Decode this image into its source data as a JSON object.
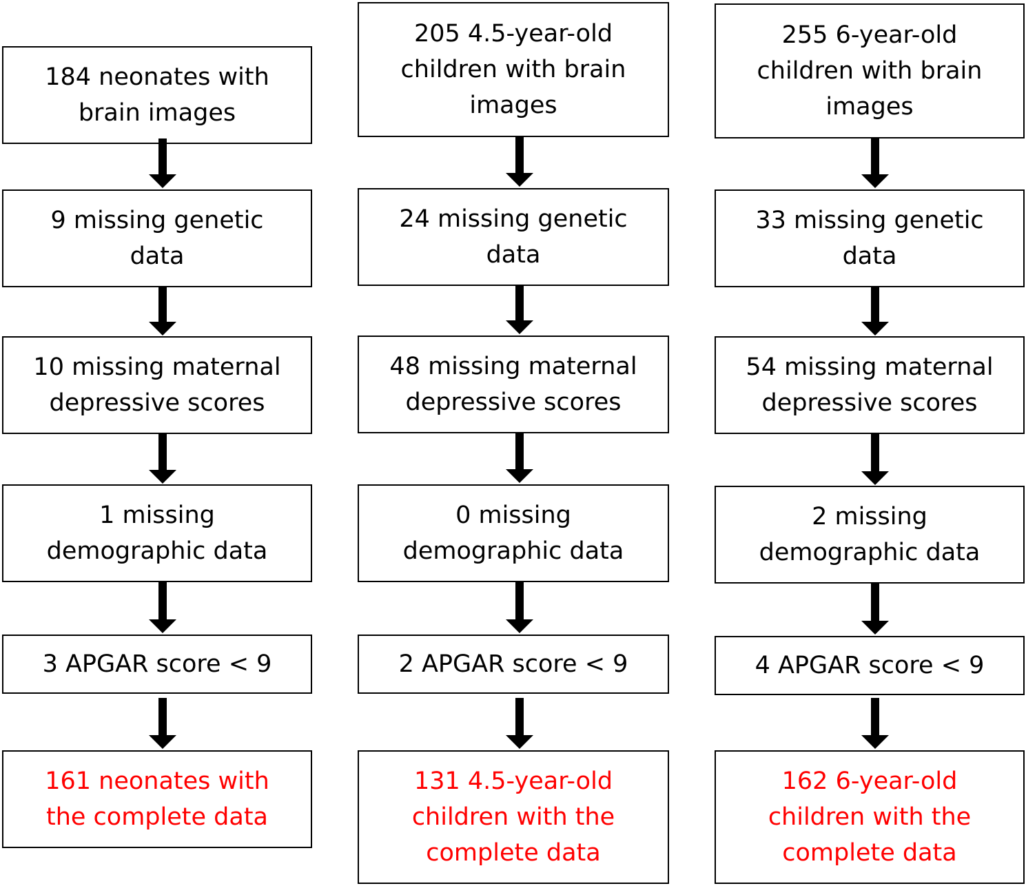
{
  "columns": [
    {
      "steps": [
        "184 neonates with\nbrain images",
        "9 missing genetic\ndata",
        "10 missing maternal\ndepressive scores",
        "1 missing\ndemographic data",
        "3 APGAR score < 9",
        "161 neonates with\nthe complete data"
      ]
    },
    {
      "steps": [
        "205  4.5-year-old\nchildren with brain\nimages",
        "24 missing genetic\ndata",
        "48 missing maternal\ndepressive scores",
        "0 missing\ndemographic data",
        "2 APGAR score < 9",
        "131 4.5-year-old\nchildren with the\ncomplete data"
      ]
    },
    {
      "steps": [
        "255 6-year-old\nchildren with brain\nimages",
        "33 missing genetic\ndata",
        "54 missing maternal\ndepressive scores",
        "2 missing\ndemographic data",
        "4 APGAR score < 9",
        "162 6-year-old\nchildren with the\ncomplete data"
      ]
    }
  ],
  "colors": {
    "text": "#000000",
    "final_text": "#ff0000",
    "border": "#000000"
  }
}
